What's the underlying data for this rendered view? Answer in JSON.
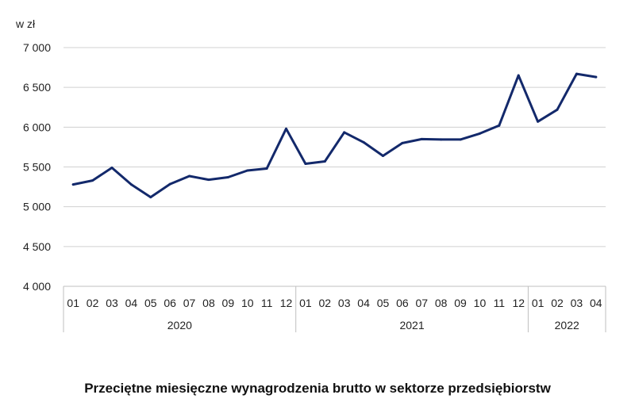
{
  "chart_data": {
    "type": "line",
    "title": "Przeciętne miesięczne wynagrodzenia brutto w sektorze przedsiębiorstw",
    "ylabel": "w zł",
    "xlabel": "",
    "ylim": [
      4000,
      7000
    ],
    "yticks": [
      "4 000",
      "4 500",
      "5 000",
      "5 500",
      "6 000",
      "6 500",
      "7 000"
    ],
    "grid": true,
    "groups": [
      {
        "label": "2020",
        "months": [
          "01",
          "02",
          "03",
          "04",
          "05",
          "06",
          "07",
          "08",
          "09",
          "10",
          "11",
          "12"
        ]
      },
      {
        "label": "2021",
        "months": [
          "01",
          "02",
          "03",
          "04",
          "05",
          "06",
          "07",
          "08",
          "09",
          "10",
          "11",
          "12"
        ]
      },
      {
        "label": "2022",
        "months": [
          "01",
          "02",
          "03",
          "04"
        ]
      }
    ],
    "values": [
      5280,
      5330,
      5490,
      5280,
      5120,
      5285,
      5385,
      5340,
      5370,
      5455,
      5480,
      5980,
      5540,
      5570,
      5935,
      5810,
      5640,
      5800,
      5850,
      5845,
      5845,
      5920,
      6020,
      6650,
      6070,
      6220,
      6670,
      6630
    ],
    "line_color": "#13296b",
    "grid_color": "#d0d0d0"
  }
}
